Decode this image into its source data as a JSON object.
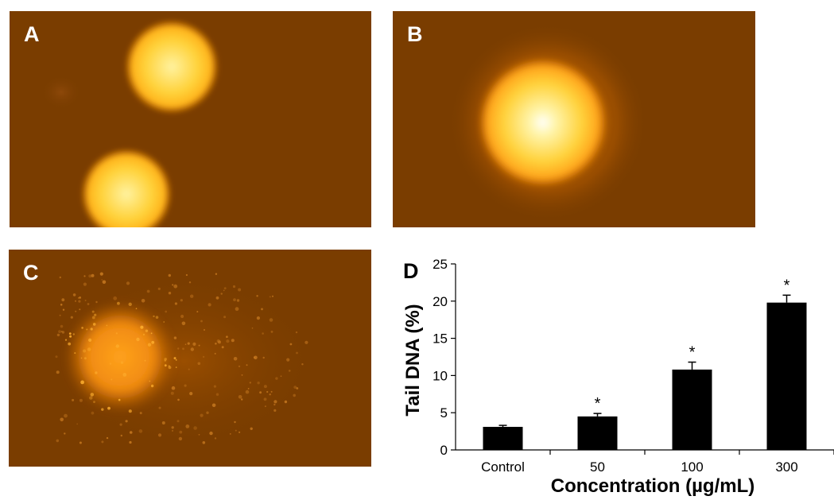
{
  "panels": {
    "a": {
      "label": "A"
    },
    "b": {
      "label": "B"
    },
    "c": {
      "label": "C"
    }
  },
  "colors": {
    "background": "#7a3d00",
    "core": "#ffdc40",
    "center": "#ffffff",
    "halo": "#ff8a00",
    "bars": "#000000"
  },
  "chart_data": {
    "type": "bar",
    "panel_label": "D",
    "categories": [
      "Control",
      "50",
      "100",
      "300"
    ],
    "values": [
      3.1,
      4.5,
      10.8,
      19.8
    ],
    "error": [
      0.2,
      0.4,
      1.0,
      1.0
    ],
    "annotations": [
      "",
      "*",
      "*",
      "*"
    ],
    "xlabel": "Concentration (µg/mL)",
    "ylabel": "Tail DNA (%)",
    "ylim": [
      0,
      25
    ],
    "yticks": [
      0,
      5,
      10,
      15,
      20,
      25
    ],
    "grid": false,
    "legend": "none"
  }
}
